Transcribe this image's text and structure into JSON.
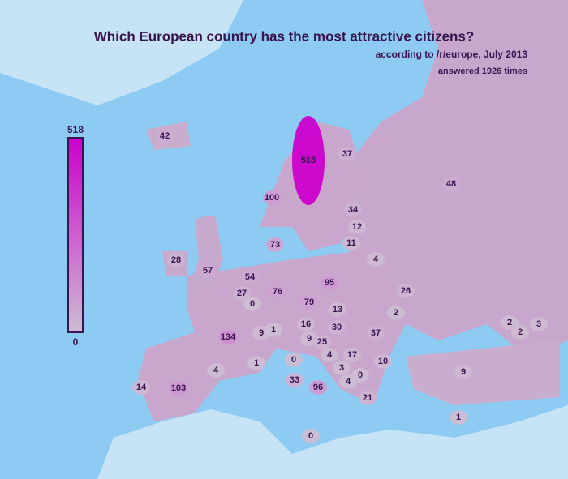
{
  "title": "Which European country has the most attractive citizens?",
  "subtitle": "according to /r/europe, July 2013",
  "note": "answered 1926 times",
  "legend": {
    "max": 518,
    "min": 0
  },
  "values": [
    42,
    518,
    37,
    48,
    100,
    34,
    12,
    11,
    73,
    4,
    28,
    57,
    54,
    95,
    27,
    0,
    76,
    26,
    79,
    13,
    2,
    2,
    3,
    2,
    134,
    9,
    1,
    16,
    30,
    37,
    9,
    25,
    4,
    17,
    10,
    0,
    1,
    4,
    3,
    9,
    0,
    33,
    4,
    96,
    14,
    103,
    21,
    1,
    0
  ]
}
